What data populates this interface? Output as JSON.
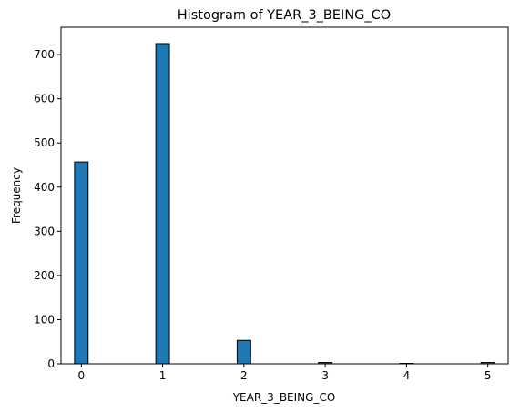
{
  "chart_data": {
    "type": "bar",
    "title": "Histogram of YEAR_3_BEING_CO",
    "xlabel": "YEAR_3_BEING_CO",
    "ylabel": "Frequency",
    "xlim": [
      -0.25,
      5.25
    ],
    "ylim": [
      0,
      762
    ],
    "bin_width": 0.1667,
    "bins": [
      {
        "x": 0,
        "value": 457
      },
      {
        "x": 1,
        "value": 725
      },
      {
        "x": 2,
        "value": 53
      },
      {
        "x": 3,
        "value": 3
      },
      {
        "x": 4,
        "value": 1
      },
      {
        "x": 5,
        "value": 3
      }
    ],
    "x_ticks": [
      "0",
      "1",
      "2",
      "3",
      "4",
      "5"
    ],
    "y_ticks": [
      "0",
      "100",
      "200",
      "300",
      "400",
      "500",
      "600",
      "700"
    ],
    "grid": false,
    "colors": {
      "bar": "#1f77b4",
      "edge": "#000000"
    }
  }
}
